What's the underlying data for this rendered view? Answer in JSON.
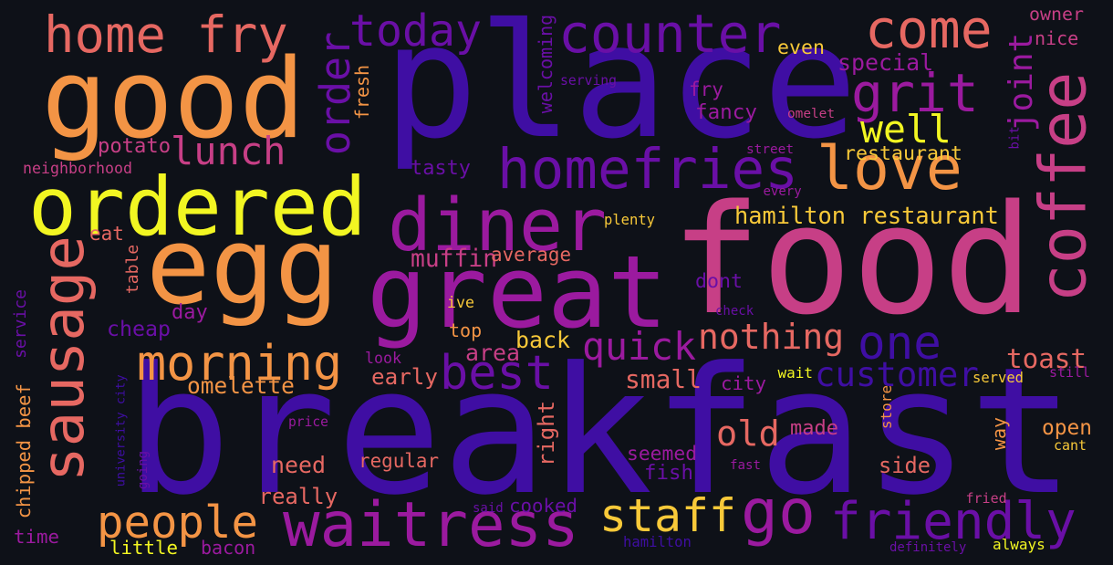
{
  "palette": {
    "background": "#0e1118",
    "deep_indigo": "#3f0ea3",
    "violet": "#6a0fa6",
    "purple": "#9b1a9f",
    "magenta": "#c73f86",
    "coral": "#e66862",
    "orange": "#f39445",
    "gold": "#f8c939",
    "yellow": "#f2f622"
  },
  "words": [
    {
      "text": "breakfast",
      "color": "#3f0ea3",
      "vertical": false
    },
    {
      "text": "food",
      "color": "#c73f86",
      "vertical": false
    },
    {
      "text": "place",
      "color": "#3f0ea3",
      "vertical": false
    },
    {
      "text": "egg",
      "color": "#f39445",
      "vertical": false
    },
    {
      "text": "good",
      "color": "#f39445",
      "vertical": false
    },
    {
      "text": "great",
      "color": "#9b1a9f",
      "vertical": false
    },
    {
      "text": "ordered",
      "color": "#f2f622",
      "vertical": false
    },
    {
      "text": "coffee",
      "color": "#c73f86",
      "vertical": true
    },
    {
      "text": "diner",
      "color": "#9b1a9f",
      "vertical": false
    },
    {
      "text": "waitress",
      "color": "#9b1a9f",
      "vertical": false
    },
    {
      "text": "sausage",
      "color": "#e66862",
      "vertical": true
    },
    {
      "text": "homefries",
      "color": "#6a0fa6",
      "vertical": false
    },
    {
      "text": "home fry",
      "color": "#e66862",
      "vertical": false
    },
    {
      "text": "counter",
      "color": "#6a0fa6",
      "vertical": false
    },
    {
      "text": "come",
      "color": "#e66862",
      "vertical": false
    },
    {
      "text": "one",
      "color": "#3f0ea3",
      "vertical": false
    },
    {
      "text": "love",
      "color": "#f39445",
      "vertical": false
    },
    {
      "text": "go",
      "color": "#9b1a9f",
      "vertical": false
    },
    {
      "text": "morning",
      "color": "#f39445",
      "vertical": false
    },
    {
      "text": "friendly",
      "color": "#6a0fa6",
      "vertical": false
    },
    {
      "text": "people",
      "color": "#f39445",
      "vertical": false
    },
    {
      "text": "staff",
      "color": "#f8c939",
      "vertical": false
    },
    {
      "text": "best",
      "color": "#6a0fa6",
      "vertical": false
    },
    {
      "text": "today",
      "color": "#6a0fa6",
      "vertical": false
    },
    {
      "text": "grit",
      "color": "#9b1a9f",
      "vertical": false
    },
    {
      "text": "lunch",
      "color": "#c73f86",
      "vertical": false
    },
    {
      "text": "well",
      "color": "#f2f622",
      "vertical": false
    },
    {
      "text": "order",
      "color": "#6a0fa6",
      "vertical": true
    },
    {
      "text": "quick",
      "color": "#9b1a9f",
      "vertical": false
    },
    {
      "text": "nothing",
      "color": "#e66862",
      "vertical": false
    },
    {
      "text": "customer",
      "color": "#3f0ea3",
      "vertical": false
    },
    {
      "text": "joint",
      "color": "#9b1a9f",
      "vertical": true
    },
    {
      "text": "hamilton restaurant",
      "color": "#f8c939",
      "vertical": false
    },
    {
      "text": "restaurant",
      "color": "#f8c939",
      "vertical": false
    },
    {
      "text": "old",
      "color": "#e66862",
      "vertical": false
    },
    {
      "text": "toast",
      "color": "#e66862",
      "vertical": false
    },
    {
      "text": "cheap",
      "color": "#6a0fa6",
      "vertical": false
    },
    {
      "text": "special",
      "color": "#9b1a9f",
      "vertical": false
    },
    {
      "text": "fancy",
      "color": "#9b1a9f",
      "vertical": false
    },
    {
      "text": "fry",
      "color": "#9b1a9f",
      "vertical": false
    },
    {
      "text": "muffin",
      "color": "#c73f86",
      "vertical": false
    },
    {
      "text": "average",
      "color": "#e66862",
      "vertical": false
    },
    {
      "text": "back",
      "color": "#f8c939",
      "vertical": false
    },
    {
      "text": "tasty",
      "color": "#6a0fa6",
      "vertical": false
    },
    {
      "text": "potato",
      "color": "#c73f86",
      "vertical": false
    },
    {
      "text": "omelette",
      "color": "#f39445",
      "vertical": false
    },
    {
      "text": "area",
      "color": "#c73f86",
      "vertical": false
    },
    {
      "text": "early",
      "color": "#e66862",
      "vertical": false
    },
    {
      "text": "small",
      "color": "#e66862",
      "vertical": false
    },
    {
      "text": "city",
      "color": "#9b1a9f",
      "vertical": false
    },
    {
      "text": "open",
      "color": "#f39445",
      "vertical": false
    },
    {
      "text": "need",
      "color": "#e66862",
      "vertical": false
    },
    {
      "text": "regular",
      "color": "#e66862",
      "vertical": false
    },
    {
      "text": "right",
      "color": "#e66862",
      "vertical": true
    },
    {
      "text": "side",
      "color": "#e66862",
      "vertical": false
    },
    {
      "text": "made",
      "color": "#c73f86",
      "vertical": false
    },
    {
      "text": "seemed",
      "color": "#9b1a9f",
      "vertical": false
    },
    {
      "text": "fish",
      "color": "#6a0fa6",
      "vertical": false
    },
    {
      "text": "way",
      "color": "#f39445",
      "vertical": true
    },
    {
      "text": "really",
      "color": "#e66862",
      "vertical": false
    },
    {
      "text": "cooked",
      "color": "#6a0fa6",
      "vertical": false
    },
    {
      "text": "bacon",
      "color": "#9b1a9f",
      "vertical": false
    },
    {
      "text": "little",
      "color": "#f2f622",
      "vertical": false
    },
    {
      "text": "hamilton",
      "color": "#3f0ea3",
      "vertical": false
    },
    {
      "text": "time",
      "color": "#9b1a9f",
      "vertical": false
    },
    {
      "text": "chipped beef",
      "color": "#f39445",
      "vertical": true
    },
    {
      "text": "service",
      "color": "#6a0fa6",
      "vertical": true
    },
    {
      "text": "table",
      "color": "#e66862",
      "vertical": true
    },
    {
      "text": "eat",
      "color": "#e66862",
      "vertical": false
    },
    {
      "text": "day",
      "color": "#9b1a9f",
      "vertical": false
    },
    {
      "text": "ive",
      "color": "#f8c939",
      "vertical": false
    },
    {
      "text": "top",
      "color": "#f39445",
      "vertical": false
    },
    {
      "text": "dont",
      "color": "#6a0fa6",
      "vertical": false
    },
    {
      "text": "even",
      "color": "#f8c939",
      "vertical": false
    },
    {
      "text": "owner",
      "color": "#c73f86",
      "vertical": false
    },
    {
      "text": "nice",
      "color": "#c73f86",
      "vertical": false
    },
    {
      "text": "omelet",
      "color": "#c73f86",
      "vertical": false
    },
    {
      "text": "fresh",
      "color": "#f39445",
      "vertical": true
    },
    {
      "text": "welcoming",
      "color": "#6a0fa6",
      "vertical": true
    },
    {
      "text": "serving",
      "color": "#6a0fa6",
      "vertical": false
    },
    {
      "text": "neighborhood",
      "color": "#c73f86",
      "vertical": false
    },
    {
      "text": "plenty",
      "color": "#f8c939",
      "vertical": false
    },
    {
      "text": "street",
      "color": "#9b1a9f",
      "vertical": false
    },
    {
      "text": "every",
      "color": "#9b1a9f",
      "vertical": false
    },
    {
      "text": "bit",
      "color": "#6a0fa6",
      "vertical": true
    },
    {
      "text": "check",
      "color": "#6a0fa6",
      "vertical": false
    },
    {
      "text": "wait",
      "color": "#f2f622",
      "vertical": false
    },
    {
      "text": "served",
      "color": "#f8c939",
      "vertical": false
    },
    {
      "text": "still",
      "color": "#9b1a9f",
      "vertical": false
    },
    {
      "text": "look",
      "color": "#9b1a9f",
      "vertical": false
    },
    {
      "text": "price",
      "color": "#9b1a9f",
      "vertical": false
    },
    {
      "text": "university city",
      "color": "#3f0ea3",
      "vertical": true
    },
    {
      "text": "going",
      "color": "#6a0fa6",
      "vertical": true
    },
    {
      "text": "store",
      "color": "#f39445",
      "vertical": true
    },
    {
      "text": "cant",
      "color": "#f8c939",
      "vertical": false
    },
    {
      "text": "fast",
      "color": "#9b1a9f",
      "vertical": false
    },
    {
      "text": "fried",
      "color": "#c73f86",
      "vertical": false
    },
    {
      "text": "said",
      "color": "#6a0fa6",
      "vertical": false
    },
    {
      "text": "definitely",
      "color": "#6a0fa6",
      "vertical": false
    },
    {
      "text": "always",
      "color": "#f2f622",
      "vertical": false
    }
  ]
}
